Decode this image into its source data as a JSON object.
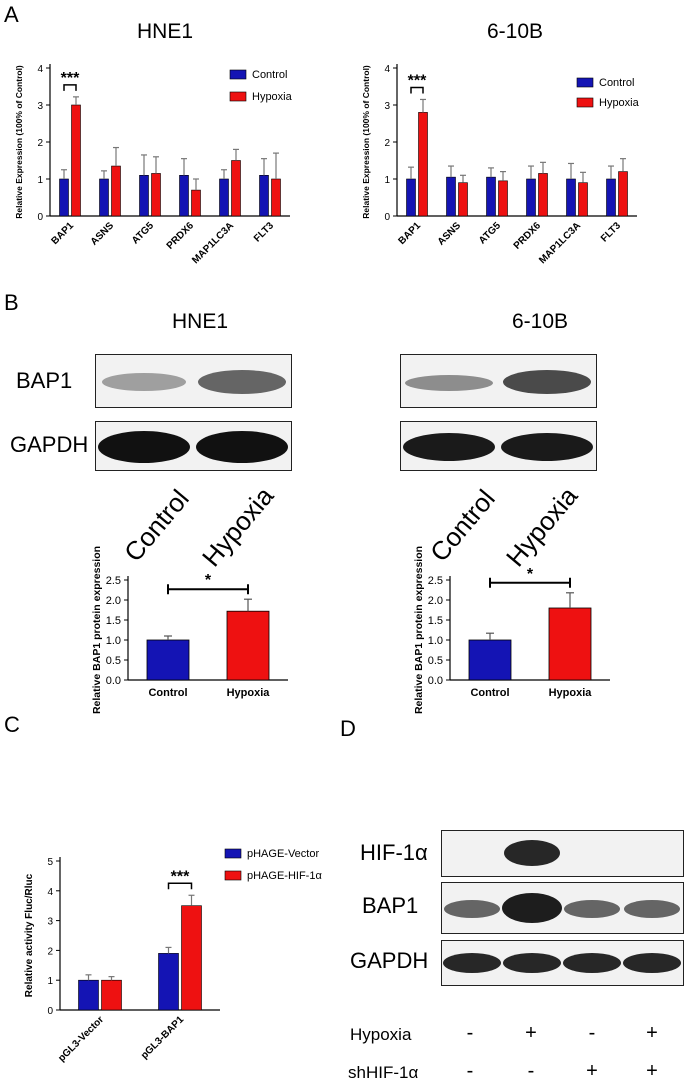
{
  "panels": {
    "A": "A",
    "B": "B",
    "C": "C",
    "D": "D"
  },
  "colors": {
    "control": "#1414b4",
    "hypoxia": "#ee1111",
    "axis": "#000000",
    "blot_bg": "#f2f2f2",
    "band": "#2a2a2a"
  },
  "panel_B": {
    "title_hne1": "HNE1",
    "title_610b": "6-10B",
    "blot_labels": {
      "bap1": "BAP1",
      "gapdh": "GAPDH"
    },
    "lanes": [
      "Control",
      "Hypoxia"
    ]
  },
  "panel_D": {
    "blot_labels": {
      "hif": "HIF-1α",
      "bap1": "BAP1",
      "gapdh": "GAPDH"
    },
    "rows": [
      {
        "label": "Hypoxia",
        "signs": [
          "-",
          "+",
          "-",
          "+"
        ]
      },
      {
        "label": "shHIF-1α",
        "signs": [
          "-",
          "-",
          "+",
          "+"
        ]
      }
    ]
  },
  "chart_data": [
    {
      "id": "A_HNE1",
      "type": "bar",
      "title": "HNE1",
      "ylabel": "Relative Expression (100% of Control)",
      "xlabel": "",
      "ylim": [
        0,
        4
      ],
      "yticks": [
        "0",
        "1",
        "2",
        "3",
        "4"
      ],
      "categories": [
        "BAP1",
        "ASNS",
        "ATG5",
        "PRDX6",
        "MAP1LC3A",
        "FLT3"
      ],
      "series": [
        {
          "name": "Control",
          "values": [
            1.0,
            1.0,
            1.1,
            1.1,
            1.0,
            1.1
          ],
          "errors": [
            0.25,
            0.22,
            0.55,
            0.45,
            0.25,
            0.45
          ]
        },
        {
          "name": "Hypoxia",
          "values": [
            3.0,
            1.35,
            1.15,
            0.7,
            1.5,
            1.0
          ],
          "errors": [
            0.22,
            0.5,
            0.45,
            0.3,
            0.3,
            0.7
          ]
        }
      ],
      "significance": [
        {
          "category": "BAP1",
          "label": "***"
        }
      ],
      "legend": "top-right"
    },
    {
      "id": "A_610B",
      "type": "bar",
      "title": "6-10B",
      "ylabel": "Relative Expression (100% of Control)",
      "xlabel": "",
      "ylim": [
        0,
        4
      ],
      "yticks": [
        "0",
        "1",
        "2",
        "3",
        "4"
      ],
      "categories": [
        "BAP1",
        "ASNS",
        "ATG5",
        "PRDX6",
        "MAP1LC3A",
        "FLT3"
      ],
      "series": [
        {
          "name": "Control",
          "values": [
            1.0,
            1.05,
            1.05,
            1.0,
            1.0,
            1.0
          ],
          "errors": [
            0.32,
            0.3,
            0.25,
            0.35,
            0.42,
            0.35
          ]
        },
        {
          "name": "Hypoxia",
          "values": [
            2.8,
            0.9,
            0.95,
            1.15,
            0.9,
            1.2
          ],
          "errors": [
            0.35,
            0.2,
            0.25,
            0.3,
            0.28,
            0.35
          ]
        }
      ],
      "significance": [
        {
          "category": "BAP1",
          "label": "***"
        }
      ],
      "legend": "top-right"
    },
    {
      "id": "B_HNE1",
      "type": "bar",
      "title": "",
      "ylabel": "Relative BAP1 protein expression",
      "xlabel": "",
      "ylim": [
        0,
        2.5
      ],
      "yticks": [
        "0.0",
        "0.5",
        "1.0",
        "1.5",
        "2.0",
        "2.5"
      ],
      "categories": [
        "Control",
        "Hypoxia"
      ],
      "values": [
        1.0,
        1.72
      ],
      "errors": [
        0.1,
        0.3
      ],
      "significance": [
        {
          "label": "*"
        }
      ]
    },
    {
      "id": "B_610B",
      "type": "bar",
      "title": "",
      "ylabel": "Relative BAP1 protein expression",
      "xlabel": "",
      "ylim": [
        0,
        2.5
      ],
      "yticks": [
        "0.0",
        "0.5",
        "1.0",
        "1.5",
        "2.0",
        "2.5"
      ],
      "categories": [
        "Control",
        "Hypoxia"
      ],
      "values": [
        1.0,
        1.8
      ],
      "errors": [
        0.17,
        0.38
      ],
      "significance": [
        {
          "label": "*"
        }
      ]
    },
    {
      "id": "C",
      "type": "bar",
      "title": "",
      "ylabel": "Relative activity Fluc/Rluc",
      "xlabel": "",
      "ylim": [
        0,
        5
      ],
      "yticks": [
        "0",
        "1",
        "2",
        "3",
        "4",
        "5"
      ],
      "categories": [
        "pGL3-Vector",
        "pGL3-BAP1"
      ],
      "series": [
        {
          "name": "pHAGE-Vector",
          "values": [
            1.0,
            1.9
          ],
          "errors": [
            0.18,
            0.2
          ]
        },
        {
          "name": "pHAGE-HIF-1α",
          "values": [
            1.0,
            3.5
          ],
          "errors": [
            0.12,
            0.35
          ]
        }
      ],
      "significance": [
        {
          "category": "pGL3-BAP1",
          "label": "***"
        }
      ],
      "legend": "top-right"
    }
  ]
}
